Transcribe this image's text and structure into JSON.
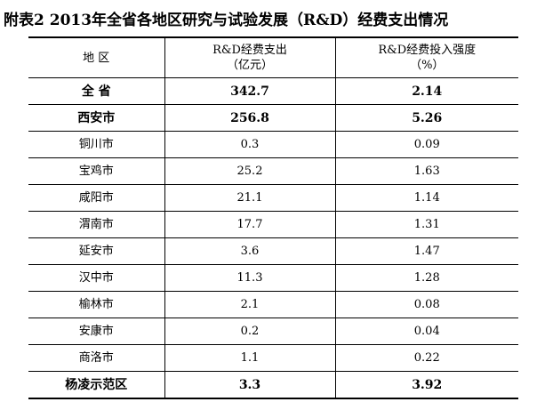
{
  "title": "附表2  2013年全省各地区研究与试验发展（R&D）经费支出情况",
  "table": {
    "headers": [
      {
        "line1": "地  区",
        "line2": ""
      },
      {
        "line1": "R&D经费支出",
        "line2": "（亿元）"
      },
      {
        "line1": "R&D经费投入强度",
        "line2": "（%）"
      }
    ],
    "rows": [
      {
        "region": "全  省",
        "expenditure": "342.7",
        "intensity": "2.14",
        "bold": true
      },
      {
        "region": "西安市",
        "expenditure": "256.8",
        "intensity": "5.26",
        "bold": true
      },
      {
        "region": "铜川市",
        "expenditure": "0.3",
        "intensity": "0.09",
        "bold": false
      },
      {
        "region": "宝鸡市",
        "expenditure": "25.2",
        "intensity": "1.63",
        "bold": false
      },
      {
        "region": "咸阳市",
        "expenditure": "21.1",
        "intensity": "1.14",
        "bold": false
      },
      {
        "region": "渭南市",
        "expenditure": "17.7",
        "intensity": "1.31",
        "bold": false
      },
      {
        "region": "延安市",
        "expenditure": "3.6",
        "intensity": "1.47",
        "bold": false
      },
      {
        "region": "汉中市",
        "expenditure": "11.3",
        "intensity": "1.28",
        "bold": false
      },
      {
        "region": "榆林市",
        "expenditure": "2.1",
        "intensity": "0.08",
        "bold": false
      },
      {
        "region": "安康市",
        "expenditure": "0.2",
        "intensity": "0.04",
        "bold": false
      },
      {
        "region": "商洛市",
        "expenditure": "1.1",
        "intensity": "0.22",
        "bold": false
      },
      {
        "region": "杨凌示范区",
        "expenditure": "3.3",
        "intensity": "3.92",
        "bold": true
      }
    ]
  }
}
